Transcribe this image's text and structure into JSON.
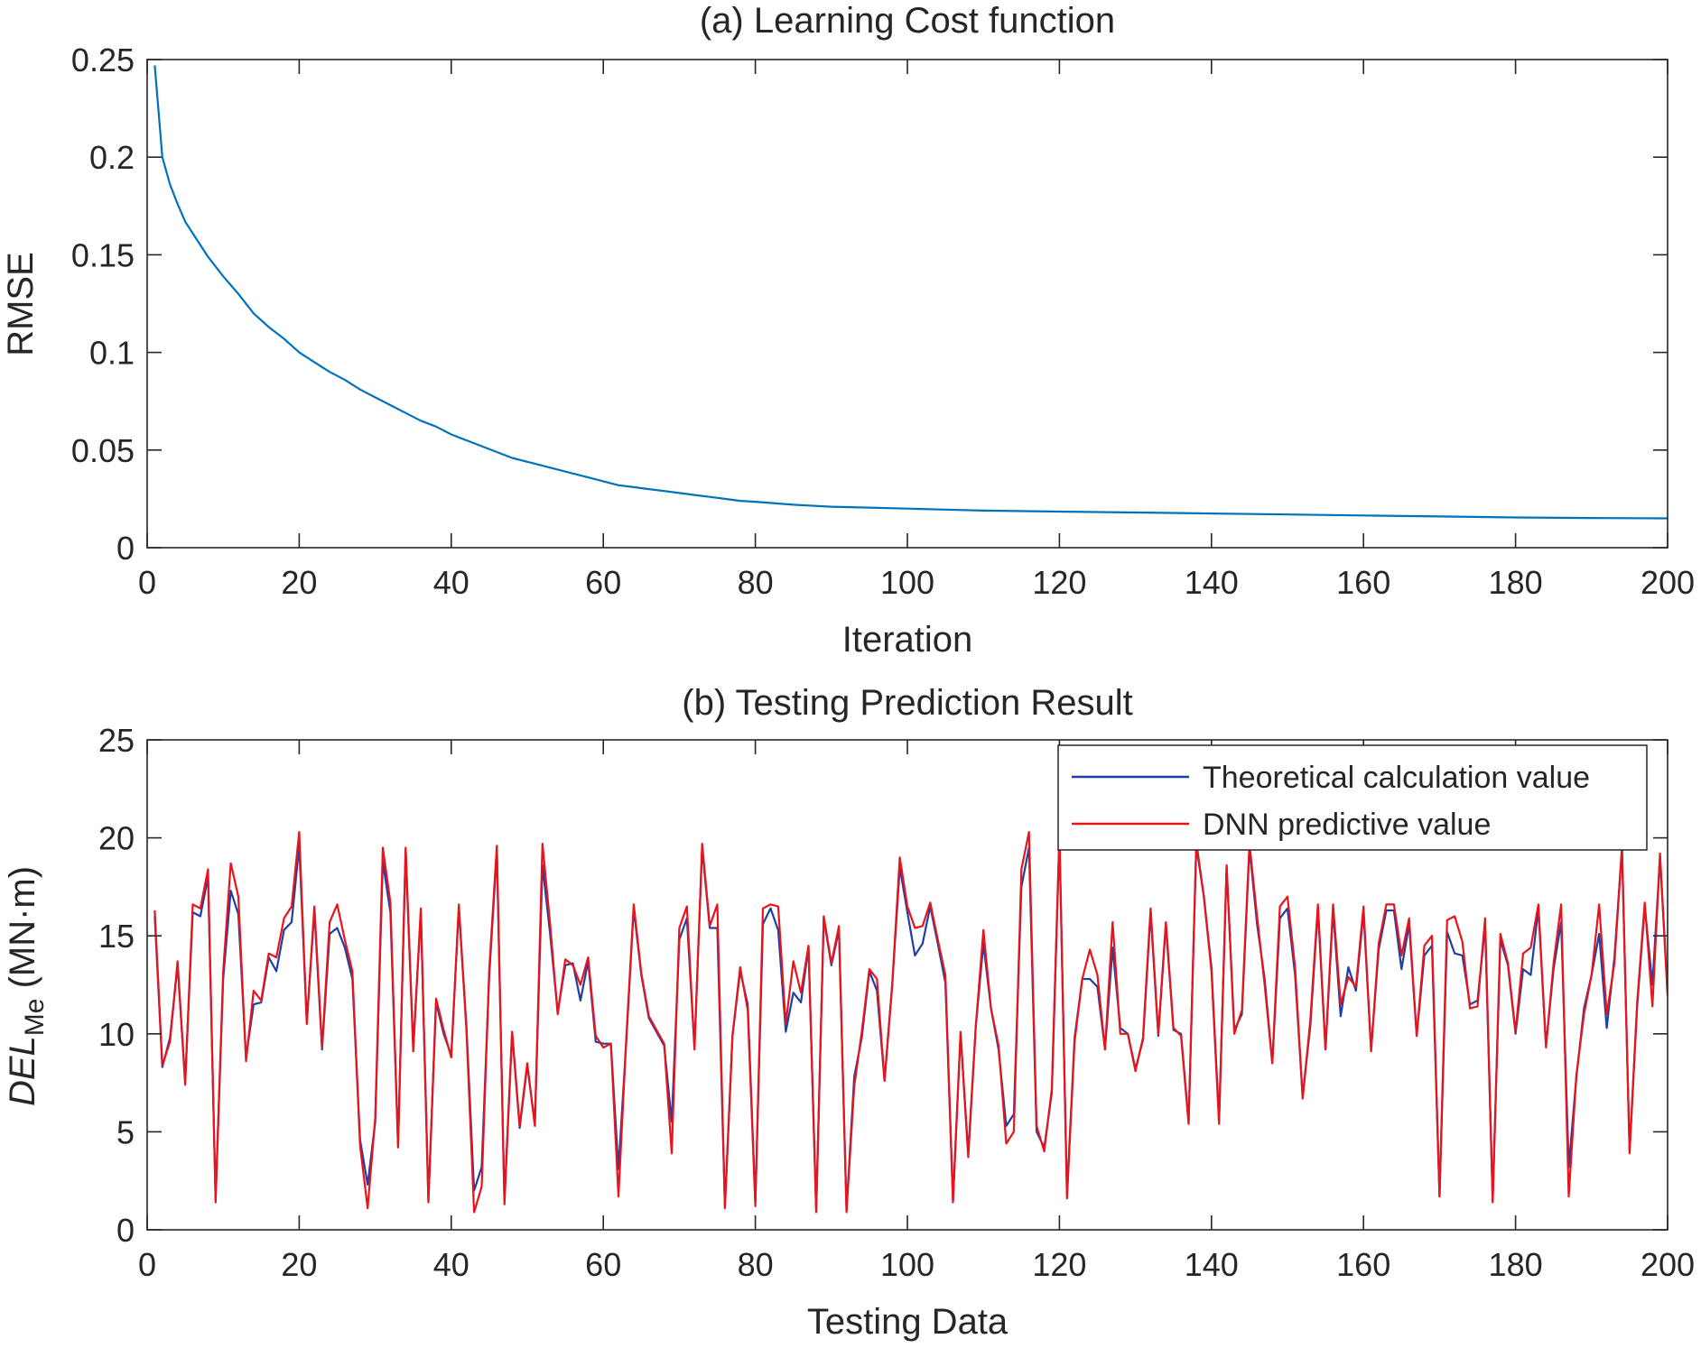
{
  "colors": {
    "series_blue_a": "#0072bd",
    "series_blue_b": "#1f3fa6",
    "series_red": "#e8141c",
    "axis": "#262626"
  },
  "chart_data": [
    {
      "id": "a",
      "type": "line",
      "title": "(a) Learning Cost function",
      "xlabel": "Iteration",
      "ylabel": "RMSE",
      "xlim": [
        0,
        200
      ],
      "ylim": [
        0,
        0.25
      ],
      "xticks": [
        0,
        20,
        40,
        60,
        80,
        100,
        120,
        140,
        160,
        180,
        200
      ],
      "xtick_labels": [
        "0",
        "20",
        "40",
        "60",
        "80",
        "100",
        "120",
        "140",
        "160",
        "180",
        "200"
      ],
      "yticks": [
        0,
        0.05,
        0.1,
        0.15,
        0.2,
        0.25
      ],
      "ytick_labels": [
        "0",
        "0.05",
        "0.1",
        "0.15",
        "0.2",
        "0.25"
      ],
      "grid": false,
      "series": [
        {
          "name": "RMSE",
          "color": "#0072bd",
          "x": [
            1,
            2,
            3,
            4,
            5,
            6,
            8,
            10,
            12,
            14,
            16,
            18,
            20,
            22,
            24,
            26,
            28,
            30,
            32,
            34,
            36,
            38,
            40,
            42,
            44,
            46,
            48,
            50,
            52,
            54,
            56,
            58,
            60,
            62,
            64,
            66,
            68,
            70,
            72,
            74,
            76,
            78,
            80,
            85,
            90,
            95,
            100,
            105,
            110,
            120,
            130,
            140,
            150,
            160,
            170,
            180,
            190,
            200
          ],
          "values": [
            0.247,
            0.2,
            0.186,
            0.176,
            0.167,
            0.161,
            0.149,
            0.139,
            0.13,
            0.12,
            0.113,
            0.107,
            0.1,
            0.095,
            0.09,
            0.086,
            0.081,
            0.077,
            0.073,
            0.069,
            0.065,
            0.062,
            0.058,
            0.055,
            0.052,
            0.049,
            0.046,
            0.044,
            0.042,
            0.04,
            0.038,
            0.036,
            0.034,
            0.032,
            0.031,
            0.03,
            0.029,
            0.028,
            0.027,
            0.026,
            0.025,
            0.024,
            0.0235,
            0.022,
            0.021,
            0.0205,
            0.02,
            0.0195,
            0.019,
            0.0185,
            0.018,
            0.0175,
            0.017,
            0.0165,
            0.016,
            0.0155,
            0.0152,
            0.015
          ]
        }
      ]
    },
    {
      "id": "b",
      "type": "line",
      "title": "(b) Testing Prediction Result",
      "xlabel": "Testing Data",
      "ylabel_main": "DEL",
      "ylabel_sub": "Me",
      "ylabel_unit": " (MN·m)",
      "xlim": [
        0,
        200
      ],
      "ylim": [
        0,
        25
      ],
      "xticks": [
        0,
        20,
        40,
        60,
        80,
        100,
        120,
        140,
        160,
        180,
        200
      ],
      "xtick_labels": [
        "0",
        "20",
        "40",
        "60",
        "80",
        "100",
        "120",
        "140",
        "160",
        "180",
        "200"
      ],
      "yticks": [
        0,
        5,
        10,
        15,
        20,
        25
      ],
      "ytick_labels": [
        "0",
        "5",
        "10",
        "15",
        "20",
        "25"
      ],
      "grid": false,
      "legend_position": "top-right",
      "series": [
        {
          "name": "Theoretical calculation value",
          "color": "#1f3fa6",
          "values": [
            16,
            8.3,
            9.8,
            13.5,
            7.6,
            16.2,
            16,
            18,
            1.6,
            12.8,
            17.3,
            16.1,
            8.8,
            11.5,
            11.6,
            13.9,
            13.2,
            15.3,
            15.7,
            19.6,
            10.6,
            16.3,
            9.2,
            15.1,
            15.4,
            14.4,
            12.8,
            4.6,
            2.3,
            5.5,
            18.8,
            16.2,
            4.3,
            19.4,
            9.3,
            16.2,
            1.5,
            11.6,
            10,
            8.9,
            16.4,
            10.4,
            2,
            3.2,
            13,
            19.3,
            1.5,
            10.1,
            5.2,
            8.4,
            5.4,
            18.6,
            15.1,
            11.1,
            13.5,
            13.6,
            11.7,
            13.7,
            9.6,
            9.5,
            9.5,
            3.1,
            9.5,
            16.4,
            13,
            10.8,
            10.1,
            9.4,
            5.5,
            14.8,
            15.9,
            9.3,
            19.5,
            15.4,
            15.4,
            1.2,
            9.9,
            13.2,
            11.5,
            1.4,
            15.6,
            16.4,
            15.3,
            10.1,
            12.1,
            11.6,
            14.4,
            1,
            15.9,
            13.5,
            15.3,
            1,
            7.8,
            9.8,
            13.2,
            12.2,
            7.6,
            12.5,
            18.5,
            16.2,
            14,
            14.6,
            16.5,
            14.6,
            12.6,
            1.5,
            10,
            3.9,
            10.4,
            14.6,
            11.3,
            9.2,
            5.3,
            5.9,
            17.5,
            19.5,
            5,
            4.2,
            7,
            20,
            1.8,
            9.8,
            12.8,
            12.8,
            12.4,
            9.2,
            14.4,
            10.3,
            10,
            8.2,
            9.7,
            16.2,
            9.9,
            15.6,
            10.2,
            10,
            5.5,
            19.6,
            17,
            13.4,
            5.6,
            18.5,
            10.2,
            11,
            19.5,
            15.6,
            12.8,
            8.5,
            15.9,
            16.4,
            13,
            6.8,
            10.4,
            16.4,
            9.2,
            16.3,
            10.9,
            13.4,
            12.2,
            16.2,
            9.2,
            14.3,
            16.3,
            16.3,
            13.3,
            15.6,
            9.9,
            14,
            14.5,
            1.7,
            15.2,
            14.1,
            14,
            11.5,
            11.7,
            15.5,
            1.5,
            14.8,
            13.5,
            10,
            13.3,
            13,
            16.4,
            9.4,
            13.3,
            15.7,
            3.2,
            7.8,
            11.3,
            13,
            15.1,
            10.3,
            13.9,
            19.5,
            4,
            11.4,
            16.5,
            12.5,
            19,
            12.1
          ]
        },
        {
          "name": "DNN predictive value",
          "color": "#e8141c",
          "values": [
            16.3,
            8.4,
            9.6,
            13.7,
            7.4,
            16.6,
            16.4,
            18.4,
            1.4,
            13.2,
            18.7,
            17,
            8.6,
            12.2,
            11.7,
            14.1,
            13.9,
            15.9,
            16.5,
            20.3,
            10.5,
            16.5,
            9.3,
            15.7,
            16.6,
            14.8,
            13.2,
            4.3,
            1.1,
            5.7,
            19.5,
            16.7,
            4.2,
            19.5,
            9.1,
            16.4,
            1.4,
            11.8,
            10.2,
            8.8,
            16.6,
            10.2,
            0.9,
            2.2,
            13.3,
            19.6,
            1.3,
            10.1,
            5.3,
            8.5,
            5.3,
            19.7,
            15.6,
            11,
            13.8,
            13.5,
            12.5,
            13.9,
            9.9,
            9.3,
            9.5,
            1.7,
            9.6,
            16.6,
            13.1,
            10.9,
            10.2,
            9.5,
            3.9,
            15.4,
            16.5,
            9.2,
            19.7,
            15.5,
            16.6,
            1.1,
            9.9,
            13.4,
            11.2,
            1.2,
            16.4,
            16.6,
            16.5,
            10.5,
            13.7,
            12.1,
            14.5,
            0.9,
            16,
            13.6,
            15.5,
            0.9,
            7.3,
            10.1,
            13.3,
            12.8,
            7.6,
            12.5,
            19,
            16.5,
            15.4,
            15.5,
            16.7,
            14.8,
            13,
            1.4,
            10.1,
            3.7,
            10.4,
            15.3,
            11.3,
            9.4,
            4.4,
            5,
            18.4,
            20.3,
            5.3,
            4,
            7.2,
            20.2,
            1.6,
            9.6,
            12.8,
            14.3,
            13,
            9.2,
            15.7,
            10,
            10,
            8.1,
            9.8,
            16.4,
            10,
            15.7,
            10.3,
            9.9,
            5.4,
            19.8,
            17,
            13.2,
            5.4,
            18.6,
            10,
            11.2,
            19.7,
            16,
            12.5,
            8.5,
            16.5,
            17,
            13.4,
            6.7,
            10.7,
            16.6,
            9.2,
            16.6,
            11.5,
            12.9,
            12.4,
            16.5,
            9.1,
            14.6,
            16.6,
            16.6,
            14,
            15.9,
            9.9,
            14.5,
            15,
            1.7,
            15.8,
            16,
            14.7,
            11.3,
            11.4,
            15.9,
            1.4,
            15.1,
            13.6,
            10.1,
            14.1,
            14.4,
            16.6,
            9.3,
            13.6,
            16.6,
            1.7,
            7.9,
            11,
            13,
            16.6,
            11,
            13.6,
            19.5,
            3.9,
            11.6,
            16.7,
            11.4,
            19.2,
            11.9
          ]
        }
      ]
    }
  ]
}
